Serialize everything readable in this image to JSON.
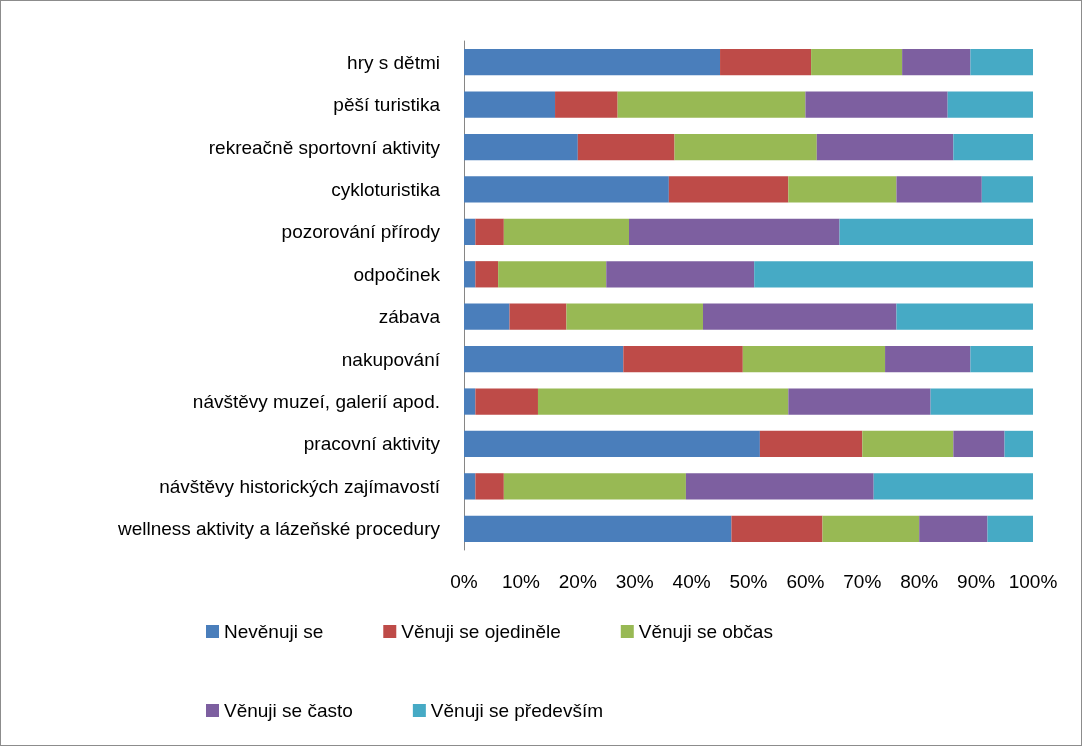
{
  "chart_data": {
    "type": "bar",
    "orientation": "horizontal",
    "stacked": true,
    "categories": [
      "hry s dětmi",
      "pěší turistika",
      "rekreačně sportovní aktivity",
      "cykloturistika",
      "pozorování přírody",
      "odpočinek",
      "zábava",
      "nakupování",
      "návštěvy muzeí, galerií apod.",
      "pracovní aktivity",
      "návštěvy historických zajímavostí",
      "wellness aktivity a lázeňské procedury"
    ],
    "series": [
      {
        "name": "Nevěnuji se",
        "color": "#4a7ebb",
        "values": [
          45,
          16,
          20,
          36,
          2,
          2,
          8,
          28,
          2,
          52,
          2,
          47
        ]
      },
      {
        "name": "Věnuji se ojediněle",
        "color": "#be4b48",
        "values": [
          16,
          11,
          17,
          21,
          5,
          4,
          10,
          21,
          11,
          18,
          5,
          16
        ]
      },
      {
        "name": "Věnuji se občas",
        "color": "#98b954",
        "values": [
          16,
          33,
          25,
          19,
          22,
          19,
          24,
          25,
          44,
          16,
          32,
          17
        ]
      },
      {
        "name": "Věnuji se často",
        "color": "#7d5fa0",
        "values": [
          12,
          25,
          24,
          15,
          37,
          26,
          34,
          15,
          25,
          9,
          33,
          12
        ]
      },
      {
        "name": "Věnuji se především",
        "color": "#46aac5",
        "values": [
          11,
          15,
          14,
          9,
          34,
          49,
          24,
          11,
          18,
          5,
          28,
          8
        ]
      }
    ],
    "xlim": [
      0,
      100
    ],
    "xticks": [
      {
        "value": 0,
        "label": "0%"
      },
      {
        "value": 10,
        "label": "10%"
      },
      {
        "value": 20,
        "label": "20%"
      },
      {
        "value": 30,
        "label": "30%"
      },
      {
        "value": 40,
        "label": "40%"
      },
      {
        "value": 50,
        "label": "50%"
      },
      {
        "value": 60,
        "label": "60%"
      },
      {
        "value": 70,
        "label": "70%"
      },
      {
        "value": 80,
        "label": "80%"
      },
      {
        "value": 90,
        "label": "90%"
      },
      {
        "value": 100,
        "label": "100%"
      }
    ],
    "grid": false,
    "legend": "bottom"
  }
}
